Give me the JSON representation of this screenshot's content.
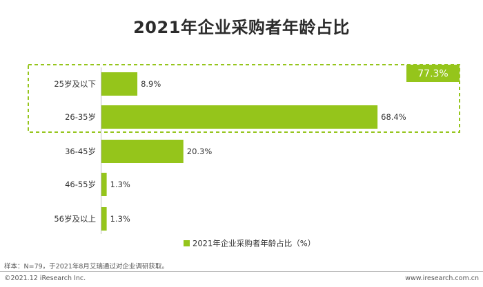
{
  "chart_data": {
    "type": "bar",
    "orientation": "horizontal",
    "title": "2021年企业采购者年龄占比",
    "categories": [
      "25岁及以下",
      "26-35岁",
      "36-45岁",
      "46-55岁",
      "56岁及以上"
    ],
    "series": [
      {
        "name": "2021年企业采购者年龄占比（%）",
        "values": [
          8.9,
          68.4,
          20.3,
          1.3,
          1.3
        ],
        "value_labels": [
          "8.9%",
          "68.4%",
          "20.3%",
          "1.3%",
          "1.3%"
        ]
      }
    ],
    "xlim": [
      0,
      100
    ],
    "grid": false,
    "legend_position": "bottom",
    "annotations": [
      {
        "text": "77.3%",
        "covers_categories": [
          "25岁及以下",
          "26-35岁"
        ],
        "style": "dashed-box"
      }
    ],
    "colors": {
      "bar": "#95c51b",
      "callout": "#95c51b",
      "dashed_box": "#95c51b"
    }
  },
  "footer": {
    "note": "样本：N=79，于2021年8月艾瑞通过对企业调研获取。",
    "copyright": "©2021.12 iResearch Inc.",
    "website": "www.iresearch.com.cn"
  }
}
